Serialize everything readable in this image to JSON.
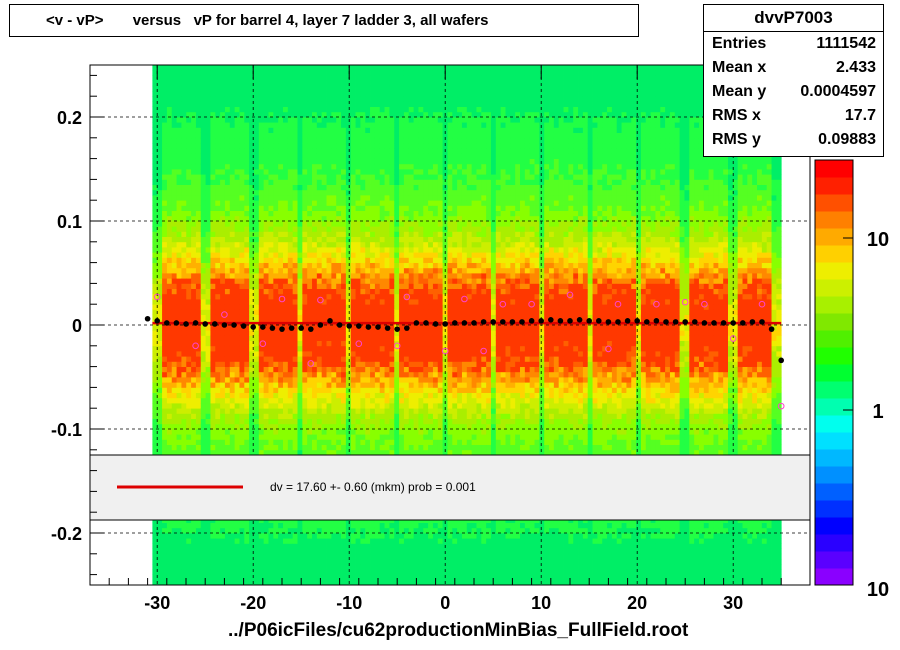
{
  "title": "<v - vP>       versus   vP for barrel 4, layer 7 ladder 3, all wafers",
  "footer": "../P06icFiles/cu62productionMinBias_FullField.root",
  "stats": {
    "name": "dvvP7003",
    "rows": [
      {
        "label": "Entries",
        "value": "1111542"
      },
      {
        "label": "Mean x",
        "value": "2.433"
      },
      {
        "label": "Mean y",
        "value": "0.0004597"
      },
      {
        "label": "RMS x",
        "value": "17.7"
      },
      {
        "label": "RMS y",
        "value": "0.09883"
      }
    ]
  },
  "legend": {
    "text": "dv =   17.60 +-  0.60 (mkm) prob = 0.001",
    "line_color": "#dd0000"
  },
  "chart_data": {
    "type": "heatmap",
    "xlim": [
      -37,
      38
    ],
    "ylim": [
      -0.25,
      0.25
    ],
    "x_ticks": [
      -30,
      -20,
      -10,
      0,
      10,
      20,
      30
    ],
    "y_ticks": [
      -0.2,
      -0.1,
      0,
      0.1,
      0.2
    ],
    "x_tick_labels": [
      "-30",
      "-20",
      "-10",
      "0",
      "10",
      "20",
      "30"
    ],
    "y_tick_labels": [
      "-0.2",
      "-0.1",
      "0",
      "0.1",
      "0.2"
    ],
    "x_data_range": [
      -30.5,
      35
    ],
    "colorbar": {
      "scale": "log",
      "tick_labels": [
        "1",
        "10",
        "10"
      ],
      "colors": [
        "#8a00ff",
        "#5a00ff",
        "#2a00ff",
        "#0000ff",
        "#0030ff",
        "#0060ff",
        "#0090ff",
        "#00b8ff",
        "#00e0ff",
        "#00ffee",
        "#00ffb0",
        "#00ff70",
        "#00ff30",
        "#20ff00",
        "#50f000",
        "#80e800",
        "#a8f000",
        "#ccf000",
        "#eeee00",
        "#ffd000",
        "#ffaa00",
        "#ff8000",
        "#ff5000",
        "#ff2000",
        "#ff0000"
      ]
    },
    "gap_columns_x": [
      -30,
      -25,
      -20,
      -15,
      -10,
      -5,
      0,
      5,
      10,
      15,
      20,
      25,
      30,
      34.5
    ],
    "profile_points": {
      "x": [
        -31,
        -30,
        -29,
        -28,
        -27,
        -26,
        -25,
        -24,
        -23,
        -22,
        -21,
        -20,
        -19,
        -18,
        -17,
        -16,
        -15,
        -14,
        -13,
        -12,
        -11,
        -10,
        -9,
        -8,
        -7,
        -6,
        -5,
        -4,
        -3,
        -2,
        -1,
        0,
        1,
        2,
        3,
        4,
        5,
        6,
        7,
        8,
        9,
        10,
        11,
        12,
        13,
        14,
        15,
        16,
        17,
        18,
        19,
        20,
        21,
        22,
        23,
        24,
        25,
        26,
        27,
        28,
        29,
        30,
        31,
        32,
        33,
        34,
        35
      ],
      "y": [
        0.006,
        0.004,
        0.002,
        0.002,
        0.001,
        0.002,
        0.001,
        0.001,
        0.0,
        0.0,
        -0.001,
        -0.002,
        -0.002,
        -0.003,
        -0.004,
        -0.003,
        -0.003,
        -0.004,
        0.0,
        0.004,
        0.0,
        -0.001,
        -0.001,
        -0.002,
        -0.002,
        -0.003,
        -0.004,
        -0.003,
        0.002,
        0.002,
        0.001,
        0.001,
        0.002,
        0.002,
        0.002,
        0.003,
        0.003,
        0.003,
        0.003,
        0.003,
        0.004,
        0.004,
        0.005,
        0.004,
        0.004,
        0.005,
        0.004,
        0.004,
        0.003,
        0.003,
        0.004,
        0.004,
        0.003,
        0.004,
        0.003,
        0.003,
        0.003,
        0.003,
        0.002,
        0.002,
        0.002,
        0.002,
        0.002,
        0.003,
        0.003,
        -0.004,
        -0.034
      ]
    },
    "outlier_points": {
      "x": [
        -30,
        -26,
        -23,
        -19,
        -17,
        -14,
        -13,
        -9,
        -5,
        -4,
        0,
        2,
        4,
        6,
        9,
        13,
        17,
        18,
        22,
        25,
        27,
        30,
        33,
        35
      ],
      "y": [
        0.027,
        -0.02,
        0.01,
        -0.018,
        0.025,
        -0.037,
        0.024,
        -0.018,
        -0.02,
        0.027,
        -0.025,
        0.025,
        -0.025,
        0.02,
        0.02,
        0.029,
        -0.023,
        0.02,
        0.02,
        0.022,
        0.02,
        -0.013,
        0.02,
        -0.078
      ]
    },
    "fit_line_y": 0.0018
  }
}
